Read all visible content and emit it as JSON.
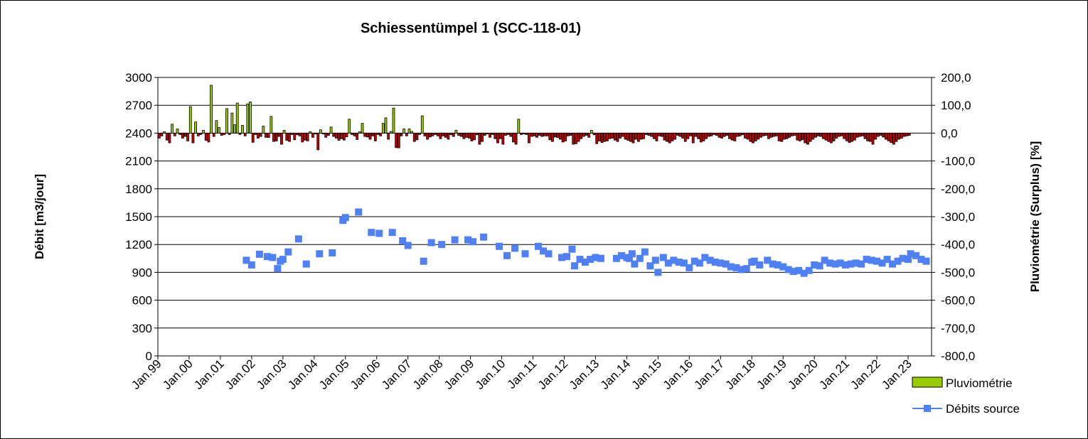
{
  "chart_data": {
    "type": "bar+scatter",
    "title": "Schiessentümpel 1 (SCC-118-01)",
    "y_left_label": "Débit  [m3/jour]",
    "y_right_label": "Pluviométrie (Surplus)  [%]",
    "y_left_ticks": [
      "0",
      "300",
      "600",
      "900",
      "1200",
      "1500",
      "1800",
      "2100",
      "2400",
      "2700",
      "3000"
    ],
    "y_right_ticks": [
      "-800,0",
      "-700,0",
      "-600,0",
      "-500,0",
      "-400,0",
      "-300,0",
      "-200,0",
      "-100,0",
      "0,0",
      "100,0",
      "200,0"
    ],
    "y_left_lim": [
      0,
      3000
    ],
    "y_right_lim": [
      -800,
      200
    ],
    "x_ticks": [
      "Jan.99",
      "Jan.00",
      "Jan.01",
      "Jan.02",
      "Jan.03",
      "Jan.04",
      "Jan.05",
      "Jan.06",
      "Jan.07",
      "Jan.08",
      "Jan.09",
      "Jan.10",
      "Jan.11",
      "Jan.12",
      "Jan.13",
      "Jan.14",
      "Jan.15",
      "Jan.16",
      "Jan.17",
      "Jan.18",
      "Jan.19",
      "Jan.20",
      "Jan.21",
      "Jan.22",
      "Jan.23"
    ],
    "x_range_years": [
      1999.0,
      2023.75
    ],
    "grid": "horizontal",
    "legend_position": "bottom-right",
    "colors": {
      "positive_bar": "#99cc00",
      "negative_bar": "#cc0000",
      "bar_outline": "#000000",
      "debit_marker": "#4f81f5",
      "grid": "#000000"
    },
    "series": [
      {
        "name": "Pluviométrie",
        "axis": "right",
        "kind": "bar",
        "start_year": 1999.0,
        "step_year": 0.08333,
        "values": [
          -18,
          -10,
          5,
          -25,
          -35,
          32,
          -10,
          15,
          -5,
          -18,
          -12,
          -28,
          95,
          -35,
          40,
          -10,
          -5,
          10,
          -26,
          -32,
          172,
          -12,
          45,
          20,
          -8,
          -5,
          88,
          -5,
          72,
          30,
          108,
          -5,
          28,
          -10,
          105,
          112,
          -33,
          -5,
          -18,
          -12,
          25,
          -15,
          -16,
          60,
          -30,
          -28,
          -12,
          -40,
          10,
          -26,
          -30,
          -5,
          -24,
          -6,
          -10,
          -32,
          -25,
          -28,
          5,
          -15,
          -3,
          -60,
          12,
          -3,
          -15,
          -8,
          22,
          -12,
          -18,
          -26,
          -20,
          -25,
          -13,
          50,
          -5,
          -10,
          -23,
          5,
          35,
          -12,
          -14,
          -22,
          -10,
          -28,
          -5,
          -10,
          35,
          55,
          -22,
          6,
          90,
          -52,
          -53,
          -10,
          15,
          -10,
          15,
          6,
          -30,
          -24,
          -5,
          62,
          -10,
          -22,
          -14,
          -10,
          -5,
          -10,
          -20,
          -10,
          -15,
          -22,
          -6,
          -12,
          10,
          -8,
          -12,
          -20,
          -15,
          -18,
          -28,
          -24,
          -6,
          -40,
          -30,
          -8,
          -3,
          -15,
          -5,
          -20,
          -35,
          -20,
          -40,
          -8,
          -5,
          -12,
          -32,
          -40,
          50,
          -5,
          -3,
          -5,
          -35,
          -12,
          -10,
          -15,
          -8,
          -12,
          -10,
          -10,
          -24,
          -30,
          -14,
          -16,
          -22,
          -32,
          -28,
          -10,
          -8,
          -40,
          -38,
          -30,
          -20,
          -12,
          -8,
          -15,
          10,
          -6,
          -38,
          -28,
          -34,
          -30,
          -28,
          -20,
          -18,
          -25,
          -30,
          -18,
          -12,
          -22,
          -26,
          -30,
          -35,
          -22,
          -30,
          -22,
          -20,
          -5,
          -8,
          -12,
          -20,
          -28,
          -10,
          -12,
          -25,
          -30,
          -35,
          -28,
          -22,
          -8,
          -12,
          -18,
          -30,
          -20,
          -10,
          -35,
          -12,
          -20,
          -32,
          -28,
          -20,
          -12,
          -10,
          -5,
          -8,
          -15,
          -18,
          -12,
          -8,
          -20,
          -25,
          -28,
          -12,
          -10,
          -6,
          -18,
          -22,
          -30,
          -35,
          -28,
          -22,
          -15,
          -10,
          -8,
          -20,
          -15,
          -12,
          -10,
          -28,
          -30,
          -22,
          -20,
          -15,
          -10,
          -8,
          -25,
          -28,
          -24,
          -35,
          -40,
          -30,
          -22,
          -15,
          -10,
          -12,
          -20,
          -25,
          -30,
          -35,
          -28,
          -18,
          -12,
          -10,
          -20,
          -28,
          -34,
          -30,
          -25,
          -15,
          -12,
          -10,
          -20,
          -28,
          -30,
          -40,
          -22,
          -12,
          -8,
          -14,
          -22,
          -28,
          -34,
          -40,
          -30,
          -22,
          -18,
          -12,
          -10,
          -8
        ]
      },
      {
        "name": "Débits source",
        "axis": "left",
        "kind": "scatter",
        "x": [
          2001.83,
          2002.0,
          2002.25,
          2002.5,
          2002.67,
          2002.83,
          2002.92,
          2003.0,
          2003.17,
          2003.5,
          2003.75,
          2004.17,
          2004.58,
          2004.92,
          2005.0,
          2005.42,
          2005.83,
          2006.08,
          2006.5,
          2006.83,
          2007.0,
          2007.5,
          2007.75,
          2008.08,
          2008.5,
          2008.92,
          2009.08,
          2009.42,
          2009.92,
          2010.17,
          2010.42,
          2010.75,
          2011.17,
          2011.33,
          2011.5,
          2011.92,
          2012.08,
          2012.25,
          2012.33,
          2012.5,
          2012.67,
          2012.83,
          2013.0,
          2013.17,
          2013.67,
          2013.83,
          2014.0,
          2014.08,
          2014.17,
          2014.25,
          2014.42,
          2014.58,
          2014.75,
          2014.92,
          2015.0,
          2015.17,
          2015.33,
          2015.5,
          2015.67,
          2015.83,
          2016.0,
          2016.17,
          2016.33,
          2016.5,
          2016.67,
          2016.83,
          2017.0,
          2017.17,
          2017.33,
          2017.5,
          2017.67,
          2017.83,
          2018.0,
          2018.08,
          2018.25,
          2018.5,
          2018.67,
          2018.83,
          2019.0,
          2019.17,
          2019.33,
          2019.5,
          2019.67,
          2019.83,
          2020.0,
          2020.17,
          2020.33,
          2020.5,
          2020.67,
          2020.83,
          2021.0,
          2021.17,
          2021.33,
          2021.5,
          2021.67,
          2021.83,
          2022.0,
          2022.17,
          2022.33,
          2022.5,
          2022.67,
          2022.83,
          2023.0,
          2023.08,
          2023.25,
          2023.42,
          2023.58
        ],
        "y": [
          1030,
          980,
          1095,
          1070,
          1060,
          940,
          1020,
          1040,
          1120,
          1260,
          990,
          1100,
          1110,
          1460,
          1490,
          1550,
          1330,
          1320,
          1330,
          1240,
          1190,
          1020,
          1220,
          1200,
          1250,
          1250,
          1230,
          1280,
          1180,
          1080,
          1160,
          1100,
          1180,
          1130,
          1100,
          1060,
          1070,
          1150,
          970,
          1040,
          1010,
          1040,
          1060,
          1050,
          1050,
          1080,
          1060,
          1050,
          1100,
          990,
          1050,
          1120,
          970,
          1030,
          900,
          1060,
          1000,
          1030,
          1010,
          1000,
          950,
          1020,
          1000,
          1060,
          1030,
          1010,
          1000,
          990,
          960,
          950,
          930,
          940,
          1010,
          1020,
          980,
          1030,
          990,
          980,
          960,
          930,
          910,
          920,
          890,
          920,
          980,
          970,
          1030,
          1000,
          990,
          1000,
          980,
          990,
          1000,
          990,
          1040,
          1030,
          1020,
          1000,
          1040,
          990,
          1020,
          1050,
          1040,
          1100,
          1080,
          1040,
          1020
        ]
      }
    ]
  },
  "legend": {
    "pluvio_label": "Pluviométrie",
    "debits_label": "Débits source"
  }
}
